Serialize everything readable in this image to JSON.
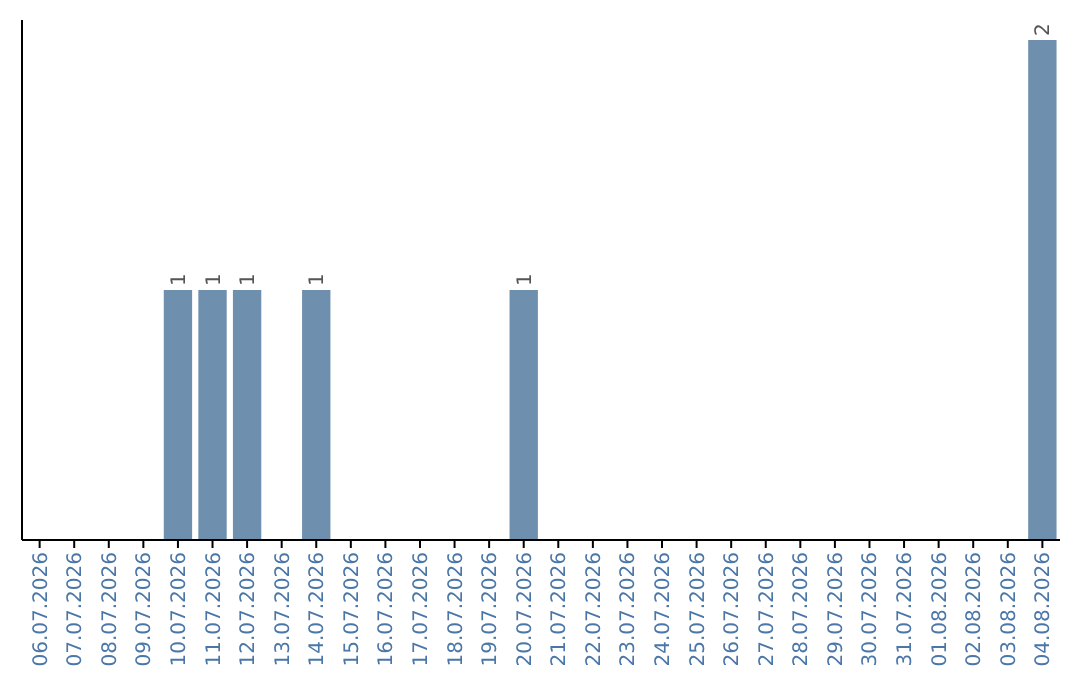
{
  "chart_data": {
    "type": "bar",
    "categories": [
      "06.07.2026",
      "07.07.2026",
      "08.07.2026",
      "09.07.2026",
      "10.07.2026",
      "11.07.2026",
      "12.07.2026",
      "13.07.2026",
      "14.07.2026",
      "15.07.2026",
      "16.07.2026",
      "17.07.2026",
      "18.07.2026",
      "19.07.2026",
      "20.07.2026",
      "21.07.2026",
      "22.07.2026",
      "23.07.2026",
      "24.07.2026",
      "25.07.2026",
      "26.07.2026",
      "27.07.2026",
      "28.07.2026",
      "29.07.2026",
      "30.07.2026",
      "31.07.2026",
      "01.08.2026",
      "02.08.2026",
      "03.08.2026",
      "04.08.2026"
    ],
    "values": [
      0,
      0,
      0,
      0,
      1,
      1,
      1,
      0,
      1,
      0,
      0,
      0,
      0,
      0,
      1,
      0,
      0,
      0,
      0,
      0,
      0,
      0,
      0,
      0,
      0,
      0,
      0,
      0,
      0,
      2
    ],
    "value_labels": [
      null,
      null,
      null,
      null,
      "1",
      "1",
      "1",
      null,
      "1",
      null,
      null,
      null,
      null,
      null,
      "1",
      null,
      null,
      null,
      null,
      null,
      null,
      null,
      null,
      null,
      null,
      null,
      null,
      null,
      null,
      "2"
    ],
    "color": "#6e8fad"
  }
}
